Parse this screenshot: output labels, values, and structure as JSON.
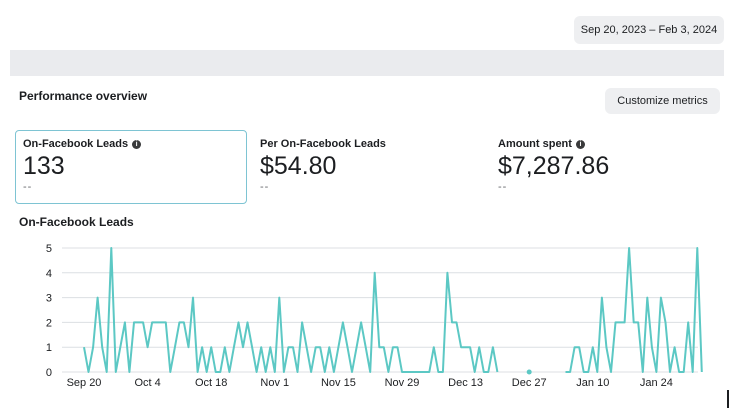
{
  "toolbar": {
    "date_range": "Sep 20, 2023 – Feb 3, 2024"
  },
  "overview": {
    "title": "Performance overview",
    "customize_label": "Customize metrics",
    "metrics": [
      {
        "label": "On-Facebook Leads",
        "value": "133",
        "compare": "--",
        "info": true
      },
      {
        "label": "Per On-Facebook Leads",
        "value": "$54.80",
        "compare": "--",
        "info": false
      },
      {
        "label": "Amount spent",
        "value": "$7,287.86",
        "compare": "--",
        "info": true
      }
    ]
  },
  "chart_data": {
    "type": "line",
    "title": "On-Facebook Leads",
    "xlabel": "",
    "ylabel": "",
    "ylim": [
      0,
      5
    ],
    "yticks": [
      "0",
      "1",
      "2",
      "3",
      "4",
      "5"
    ],
    "xticks": [
      "Sep 20",
      "Oct 4",
      "Oct 18",
      "Nov 1",
      "Nov 15",
      "Nov 29",
      "Dec 13",
      "Dec 27",
      "Jan 10",
      "Jan 24"
    ],
    "grid": true,
    "color": "#5cc8c4",
    "series": [
      {
        "name": "",
        "start": "2023-09-20",
        "values": [
          1,
          0,
          1,
          3,
          1,
          0,
          5,
          0,
          1,
          2,
          0,
          2,
          2,
          2,
          1,
          2,
          2,
          2,
          2,
          0,
          1,
          2,
          2,
          1,
          3,
          0,
          1,
          0,
          1,
          0,
          0,
          1,
          0,
          1,
          2,
          1,
          2,
          1,
          0,
          1,
          0,
          1,
          0,
          3,
          0,
          1,
          1,
          0,
          2,
          1,
          0,
          1,
          1,
          0,
          1,
          0,
          1,
          2,
          1,
          0,
          1,
          2,
          1,
          0,
          4,
          1,
          1,
          0,
          1,
          1,
          0,
          0,
          0,
          0,
          0,
          0,
          0,
          1,
          0,
          0,
          4,
          2,
          2,
          1,
          1,
          1,
          0,
          1,
          0,
          0,
          1,
          0,
          null,
          null,
          null,
          null,
          null,
          null,
          0,
          null,
          null,
          null,
          null,
          null,
          null,
          null,
          0,
          0,
          1,
          1,
          0,
          0,
          1,
          0,
          3,
          1,
          0,
          2,
          2,
          2,
          5,
          2,
          2,
          0,
          3,
          1,
          0,
          3,
          2,
          0,
          1,
          0,
          0,
          2,
          0,
          5,
          0
        ]
      }
    ]
  }
}
